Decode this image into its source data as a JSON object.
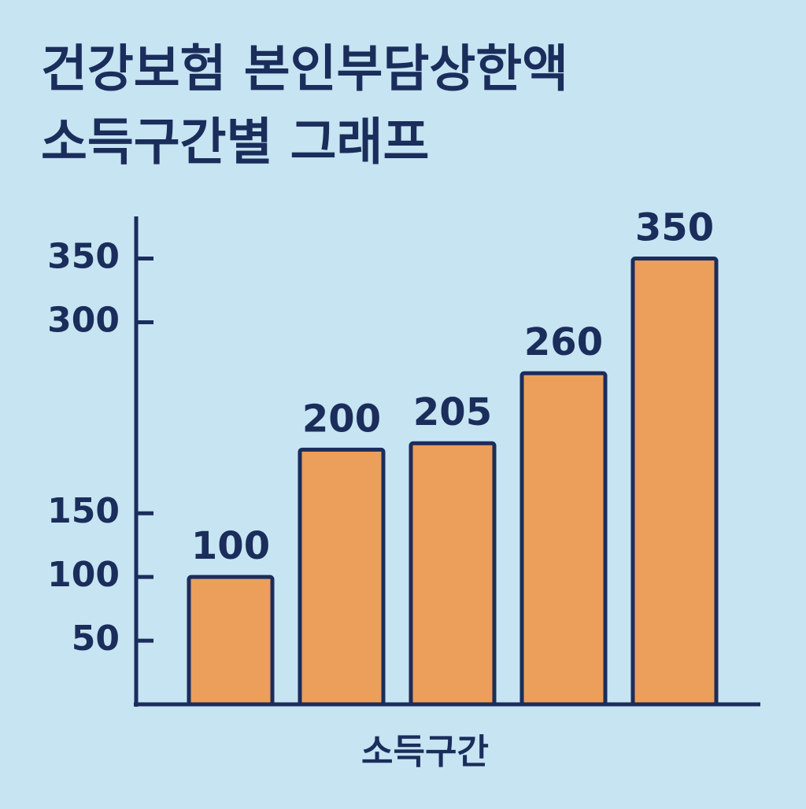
{
  "chart_data": {
    "type": "bar",
    "title": [
      "건강보험 본인부담상한액",
      "소득구간별 그래프"
    ],
    "xlabel": "소득구간",
    "categories": [
      null,
      null,
      null,
      null,
      null
    ],
    "values": [
      100,
      200,
      205,
      260,
      350
    ],
    "color": "#eb9f5b",
    "edge_color": "#1b2d5b",
    "ylim": [
      0,
      380
    ],
    "yticks": [
      50,
      100,
      150,
      300,
      350
    ],
    "grid": false
  }
}
